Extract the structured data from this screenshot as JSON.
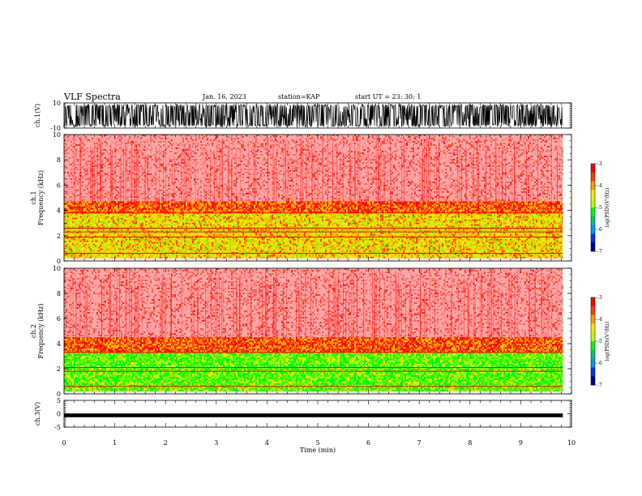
{
  "header": {
    "title": "VLF Spectra",
    "date": "Jan. 16, 2023",
    "station": "station=KAP",
    "start": "start  UT  =   23: 30: 1"
  },
  "colorbar": {
    "label": "log(PSD)(V²/Hz)",
    "ticks": [
      "-3",
      "-4",
      "-5",
      "-6",
      "-7"
    ],
    "colors": [
      "#ff0000",
      "#ff4000",
      "#ff9900",
      "#ffe600",
      "#b4ff00",
      "#00ff00",
      "#00c86e",
      "#0096ff",
      "#0032ff",
      "#000096"
    ]
  },
  "chart_data": [
    {
      "type": "line",
      "panel": "ch1-voltage",
      "ylabel": "ch.1(V)",
      "ylim": [
        -10,
        10
      ],
      "yticks": [
        "10",
        "-10"
      ],
      "xlim": [
        0,
        10
      ],
      "x_extent": [
        0,
        9.83
      ],
      "envelope": [
        -9,
        9
      ]
    },
    {
      "type": "heatmap",
      "panel": "ch1-spectrogram",
      "ylabel": "ch.1\nFrequency (kHz)",
      "ylim": [
        0,
        10
      ],
      "yticks": [
        "10",
        "8",
        "6",
        "4",
        "2",
        "0"
      ],
      "xlim": [
        0,
        10
      ],
      "x_extent": [
        0,
        9.83
      ],
      "bands": [
        {
          "from": 4.7,
          "to": 10,
          "level": "high"
        },
        {
          "from": 3.8,
          "to": 4.7,
          "level": "upper-mid"
        },
        {
          "from": 0.3,
          "to": 3.8,
          "level": "mid"
        }
      ],
      "lines_khz": [
        3.8,
        2.6,
        2.3,
        1.9,
        0.6
      ]
    },
    {
      "type": "heatmap",
      "panel": "ch2-spectrogram",
      "ylabel": "ch.2\nFrequency (kHz)",
      "ylim": [
        0,
        10
      ],
      "yticks": [
        "10",
        "8",
        "6",
        "4",
        "2",
        "0"
      ],
      "xlim": [
        0,
        10
      ],
      "x_extent": [
        0,
        9.83
      ],
      "bands": [
        {
          "from": 4.5,
          "to": 10,
          "level": "high"
        },
        {
          "from": 3.3,
          "to": 4.5,
          "level": "upper-mid"
        },
        {
          "from": 0.3,
          "to": 3.3,
          "level": "low"
        }
      ],
      "lines_khz": [
        3.3,
        2.1,
        1.8,
        0.6
      ]
    },
    {
      "type": "line",
      "panel": "ch3-voltage",
      "ylabel": "ch.3(V)",
      "ylim": [
        -5,
        5
      ],
      "yticks": [
        "5",
        "0",
        "-5"
      ],
      "xlim": [
        0,
        10
      ],
      "x_extent": [
        0,
        9.83
      ],
      "envelope": [
        -0.4,
        0.4
      ],
      "level": -0.6
    }
  ],
  "xaxis": {
    "label": "Time (min)",
    "ticks": [
      "0",
      "1",
      "2",
      "3",
      "4",
      "5",
      "6",
      "7",
      "8",
      "9",
      "10"
    ]
  }
}
